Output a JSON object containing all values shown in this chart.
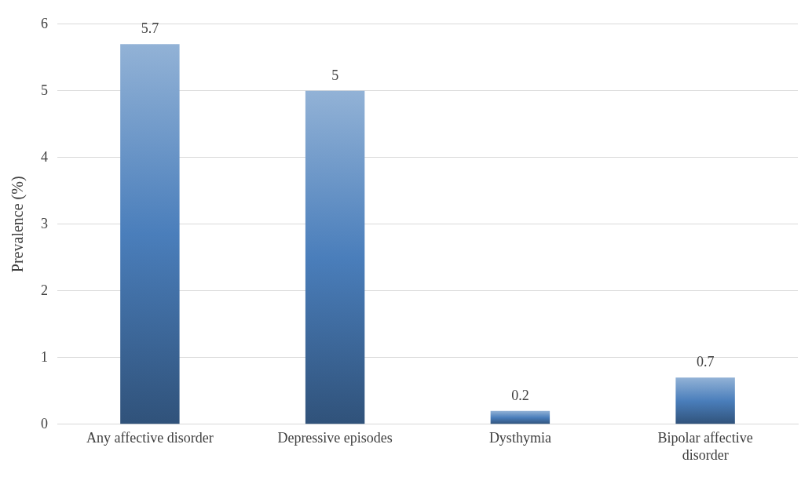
{
  "chart_data": {
    "type": "bar",
    "ylabel": "Prevalence (%)",
    "categories": [
      "Any affective disorder",
      "Depressive episodes",
      "Dysthymia",
      "Bipolar affective disorder"
    ],
    "values": [
      5.7,
      5,
      0.2,
      0.7
    ],
    "color": "#4a7ebb",
    "ylim": [
      0,
      6
    ],
    "yticks": [
      0,
      1,
      2,
      3,
      4,
      5,
      6
    ],
    "grid": "y",
    "legend": false,
    "data_labels": true
  }
}
